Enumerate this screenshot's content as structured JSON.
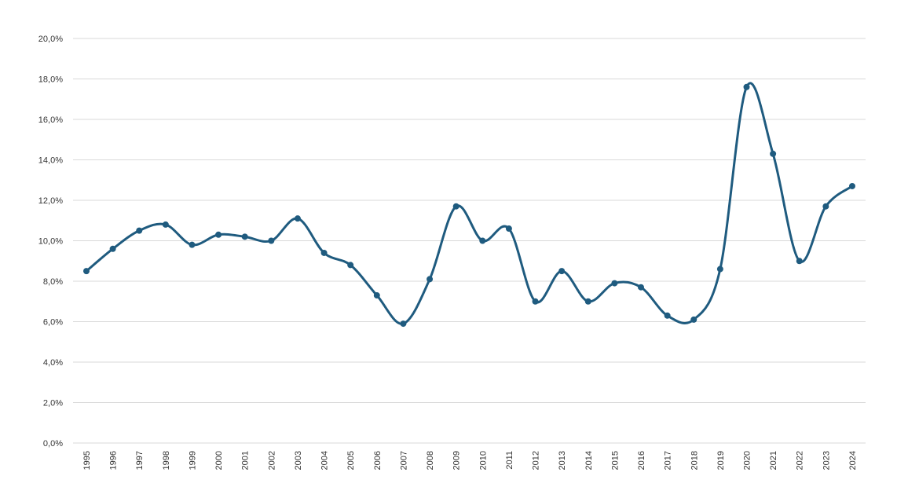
{
  "chart_data": {
    "type": "line",
    "title": "",
    "xlabel": "",
    "ylabel": "",
    "ylim": [
      0,
      20
    ],
    "ytick_step": 2,
    "ytick_format": "percent_comma_1dp",
    "grid": true,
    "smooth": true,
    "markers": true,
    "series_color": "#1f5b7f",
    "gridline_color": "#d9d9d9",
    "categories": [
      "1995",
      "1996",
      "1997",
      "1998",
      "1999",
      "2000",
      "2001",
      "2002",
      "2003",
      "2004",
      "2005",
      "2006",
      "2007",
      "2008",
      "2009",
      "2010",
      "2011",
      "2012",
      "2013",
      "2014",
      "2015",
      "2016",
      "2017",
      "2018",
      "2019",
      "2020",
      "2021",
      "2022",
      "2023",
      "2024"
    ],
    "series": [
      {
        "values": [
          8.5,
          9.6,
          10.5,
          10.8,
          9.8,
          10.3,
          10.2,
          10.0,
          11.1,
          9.4,
          8.8,
          7.3,
          5.9,
          8.1,
          11.7,
          10.0,
          10.6,
          7.0,
          8.5,
          7.0,
          7.9,
          7.7,
          6.3,
          6.1,
          8.6,
          17.6,
          14.3,
          9.0,
          11.7,
          12.7
        ]
      }
    ]
  }
}
